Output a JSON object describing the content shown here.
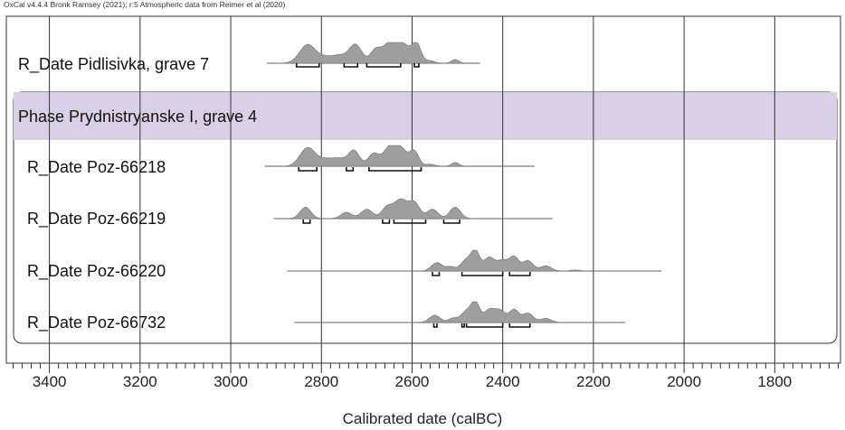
{
  "header": "OxCal v4.4.4 Bronk Ramsey (2021); r:5 Atmospheric data from Reimer et al (2020)",
  "chart_data": {
    "type": "area",
    "title": "",
    "xlabel": "Calibrated date (calBC)",
    "xlim": [
      3495,
      1655
    ],
    "x_ticks": [
      3400,
      3200,
      3000,
      2800,
      2600,
      2400,
      2200,
      2000,
      1800
    ],
    "x_axis_reversed": true,
    "grid": true,
    "phase": {
      "label": "Phase Prydnistryanske I, grave 4",
      "color": "#d7d0e6"
    },
    "curve_color": "#9e9e9e",
    "rows": [
      {
        "label": "R_Date Pidlisivka, grave 7",
        "in_phase": false,
        "range": [
          2920,
          2450
        ],
        "peaks": [
          [
            2830,
            0.9,
            18
          ],
          [
            2790,
            0.25,
            15
          ],
          [
            2760,
            0.35,
            15
          ],
          [
            2725,
            0.9,
            14
          ],
          [
            2680,
            0.65,
            12
          ],
          [
            2650,
            0.9,
            14
          ],
          [
            2620,
            0.9,
            15
          ],
          [
            2590,
            0.9,
            10
          ],
          [
            2560,
            0.12,
            10
          ],
          [
            2505,
            0.18,
            8
          ]
        ],
        "hpd": [
          [
            2855,
            2805
          ],
          [
            2750,
            2720
          ],
          [
            2700,
            2625
          ],
          [
            2595,
            2585
          ]
        ]
      },
      {
        "label": "R_Date Poz-66218",
        "in_phase": true,
        "range": [
          2925,
          2330
        ],
        "peaks": [
          [
            2830,
            0.9,
            17
          ],
          [
            2790,
            0.3,
            15
          ],
          [
            2760,
            0.35,
            15
          ],
          [
            2728,
            0.75,
            12
          ],
          [
            2685,
            0.6,
            12
          ],
          [
            2650,
            0.85,
            14
          ],
          [
            2625,
            0.8,
            14
          ],
          [
            2595,
            0.7,
            10
          ],
          [
            2560,
            0.1,
            10
          ],
          [
            2505,
            0.18,
            8
          ]
        ],
        "hpd": [
          [
            2850,
            2810
          ],
          [
            2745,
            2730
          ],
          [
            2695,
            2580
          ]
        ]
      },
      {
        "label": "R_Date Poz-66219",
        "in_phase": true,
        "range": [
          2905,
          2290
        ],
        "peaks": [
          [
            2835,
            0.55,
            12
          ],
          [
            2745,
            0.3,
            12
          ],
          [
            2700,
            0.45,
            13
          ],
          [
            2655,
            0.55,
            12
          ],
          [
            2625,
            0.9,
            14
          ],
          [
            2595,
            0.75,
            12
          ],
          [
            2555,
            0.45,
            12
          ],
          [
            2505,
            0.55,
            12
          ]
        ],
        "hpd": [
          [
            2840,
            2825
          ],
          [
            2665,
            2650
          ],
          [
            2640,
            2570
          ],
          [
            2530,
            2495
          ]
        ]
      },
      {
        "label": "R_Date Poz-66220",
        "in_phase": true,
        "range": [
          2875,
          2050
        ],
        "peaks": [
          [
            2545,
            0.4,
            12
          ],
          [
            2515,
            0.2,
            10
          ],
          [
            2480,
            0.55,
            12
          ],
          [
            2460,
            0.9,
            9
          ],
          [
            2430,
            0.65,
            12
          ],
          [
            2400,
            0.5,
            12
          ],
          [
            2375,
            0.65,
            10
          ],
          [
            2345,
            0.5,
            12
          ],
          [
            2305,
            0.25,
            12
          ],
          [
            2240,
            0.05,
            10
          ]
        ],
        "hpd": [
          [
            2555,
            2540
          ],
          [
            2490,
            2400
          ],
          [
            2385,
            2340
          ]
        ]
      },
      {
        "label": "R_Date Poz-66732",
        "in_phase": true,
        "range": [
          2860,
          2130
        ],
        "peaks": [
          [
            2550,
            0.35,
            12
          ],
          [
            2510,
            0.2,
            10
          ],
          [
            2480,
            0.55,
            12
          ],
          [
            2460,
            0.9,
            9
          ],
          [
            2430,
            0.6,
            12
          ],
          [
            2405,
            0.55,
            12
          ],
          [
            2375,
            0.6,
            10
          ],
          [
            2345,
            0.45,
            12
          ],
          [
            2305,
            0.2,
            12
          ]
        ],
        "hpd": [
          [
            2552,
            2545
          ],
          [
            2490,
            2485
          ],
          [
            2480,
            2400
          ],
          [
            2385,
            2340
          ]
        ]
      }
    ]
  }
}
